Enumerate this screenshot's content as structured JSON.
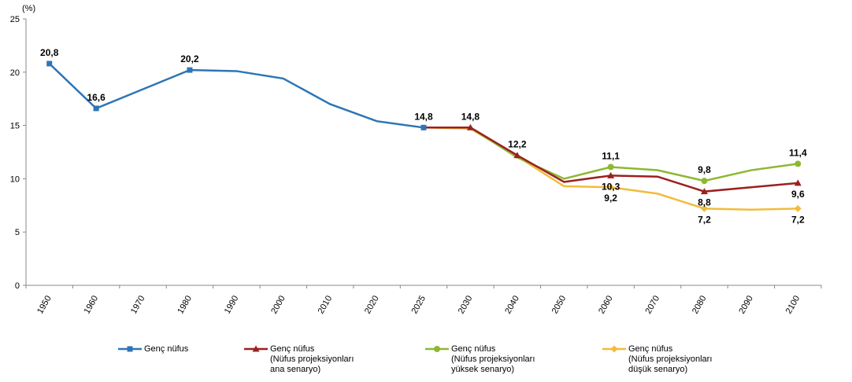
{
  "chart_data": {
    "type": "line",
    "y_unit": "(%)",
    "categories": [
      "1950",
      "1960",
      "1970",
      "1980",
      "1990",
      "2000",
      "2010",
      "2020",
      "2025",
      "2030",
      "2040",
      "2050",
      "2060",
      "2070",
      "2080",
      "2090",
      "2100"
    ],
    "ylim": [
      0,
      25
    ],
    "yticks": [
      0,
      5,
      10,
      15,
      20,
      25
    ],
    "series": [
      {
        "name": "Genç nüfus",
        "color": "#2e75b6",
        "marker": "square",
        "values": [
          20.8,
          16.6,
          18.4,
          20.2,
          20.1,
          19.4,
          17.0,
          15.4,
          14.8,
          null,
          null,
          null,
          null,
          null,
          null,
          null,
          null
        ],
        "value_labels": [
          "20,8",
          "16,6",
          null,
          "20,2",
          null,
          null,
          null,
          null,
          "14,8",
          null,
          null,
          null,
          null,
          null,
          null,
          null,
          null
        ]
      },
      {
        "name": "Genç nüfus\n(Nüfus projeksiyonları\nana senaryo)",
        "color": "#9b2020",
        "marker": "triangle",
        "values": [
          null,
          null,
          null,
          null,
          null,
          null,
          null,
          null,
          14.8,
          14.8,
          12.2,
          9.7,
          10.3,
          10.2,
          8.8,
          9.2,
          9.6
        ],
        "value_labels": [
          null,
          null,
          null,
          null,
          null,
          null,
          null,
          null,
          null,
          "14,8",
          "12,2",
          null,
          "10,3",
          null,
          "8,8",
          null,
          "9,6"
        ]
      },
      {
        "name": "Genç nüfus\n(Nüfus projeksiyonları\nyüksek senaryo)",
        "color": "#8db832",
        "marker": "circle",
        "values": [
          null,
          null,
          null,
          null,
          null,
          null,
          null,
          null,
          14.8,
          14.8,
          12.0,
          10.0,
          11.1,
          10.8,
          9.8,
          10.8,
          11.4
        ],
        "value_labels": [
          null,
          null,
          null,
          null,
          null,
          null,
          null,
          null,
          null,
          null,
          null,
          null,
          "11,1",
          null,
          "9,8",
          null,
          "11,4"
        ]
      },
      {
        "name": "Genç nüfus\n(Nüfus projeksiyonları\ndüşük senaryo)",
        "color": "#f2bc3a",
        "marker": "diamond",
        "values": [
          null,
          null,
          null,
          null,
          null,
          null,
          null,
          null,
          14.8,
          14.7,
          12.1,
          9.3,
          9.2,
          8.6,
          7.2,
          7.1,
          7.2
        ],
        "value_labels": [
          null,
          null,
          null,
          null,
          null,
          null,
          null,
          null,
          null,
          null,
          null,
          null,
          "9,2",
          null,
          "7,2",
          null,
          "7,2"
        ]
      }
    ]
  }
}
